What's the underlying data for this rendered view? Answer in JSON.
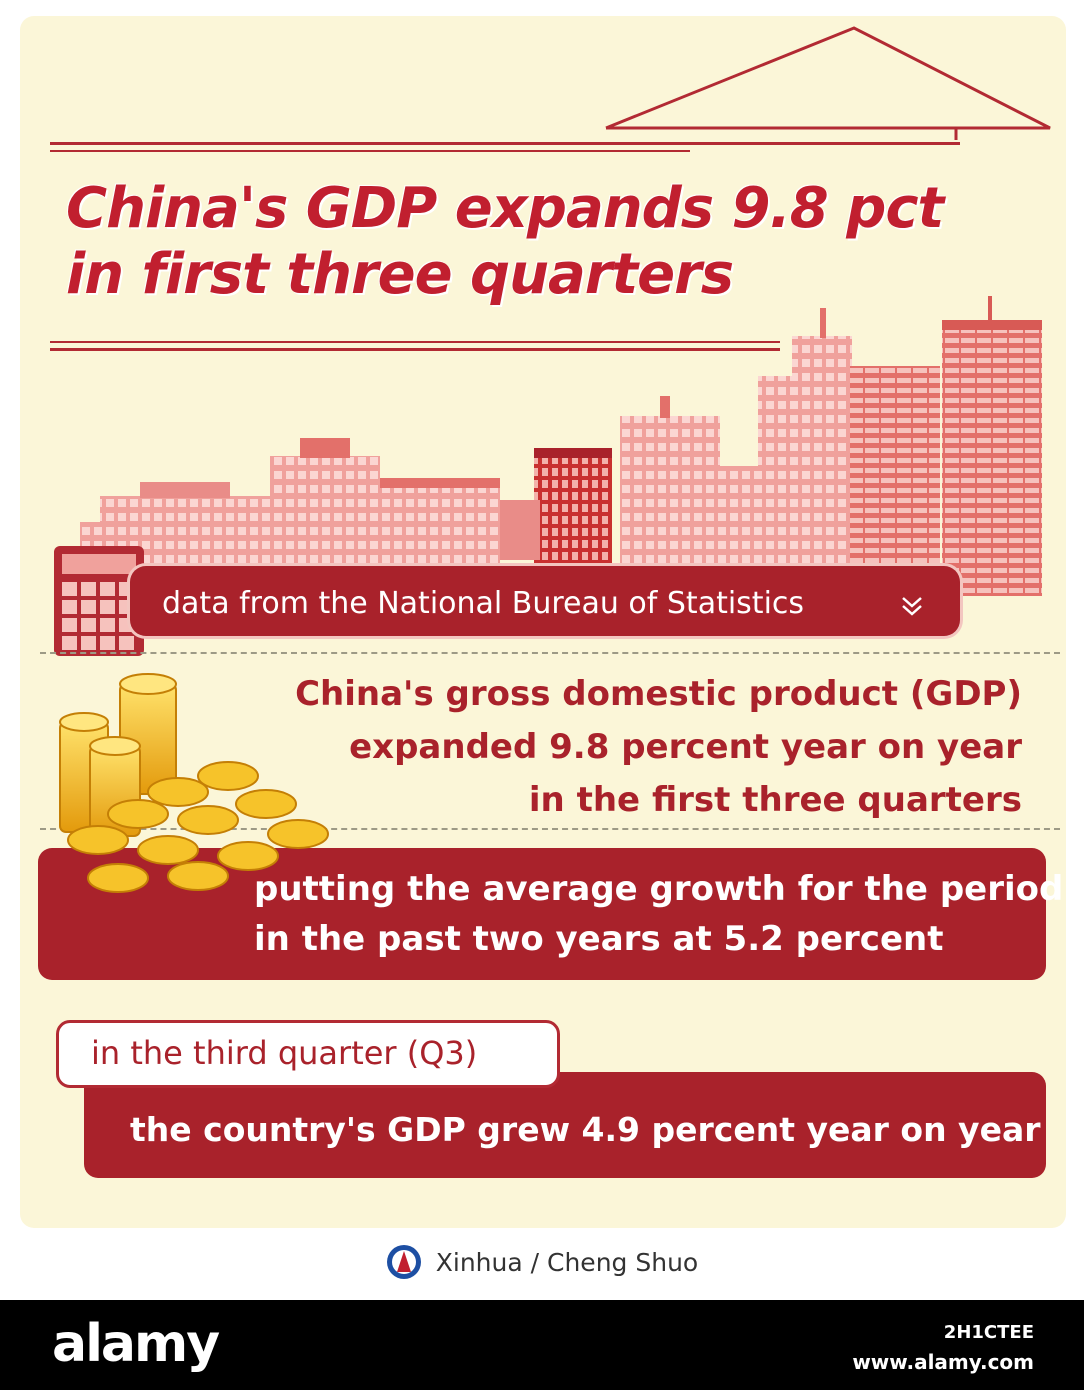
{
  "colors": {
    "primary_red": "#a9222b",
    "title_red": "#c11f2f",
    "background_cream": "#fbf6d8",
    "building_pink": "#e98c88",
    "coin_gold": "#f2b416"
  },
  "headline": {
    "line1": "China's GDP expands 9.8 pct",
    "line2": "in first three quarters"
  },
  "source": {
    "text": "data from the National Bureau of Statistics",
    "icon": "double-chevron-down-icon"
  },
  "gdp": {
    "line1": "China's gross domestic product (GDP)",
    "line2": "expanded 9.8 percent year on year",
    "line3": "in the first three quarters"
  },
  "average": {
    "line1": "putting the average growth for the period",
    "line2": "in the past two years at 5.2 percent"
  },
  "q3": {
    "label": "in the third quarter (Q3)",
    "text": "the country's GDP grew 4.9 percent year on year"
  },
  "credit": {
    "text": "Xinhua / Cheng Shuo",
    "icon": "xinhua-logo-icon"
  },
  "footer": {
    "brand": "alamy",
    "image_id": "2H1CTEE",
    "url": "www.alamy.com"
  }
}
